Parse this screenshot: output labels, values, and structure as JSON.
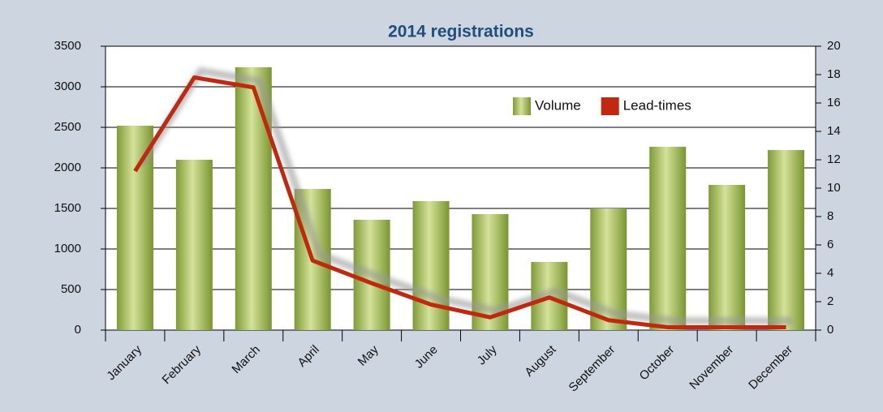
{
  "chart_data": {
    "type": "bar",
    "title": "2014 registrations",
    "categories": [
      "January",
      "February",
      "March",
      "April",
      "May",
      "June",
      "July",
      "August",
      "September",
      "October",
      "November",
      "December"
    ],
    "series": [
      {
        "name": "Volume",
        "color": "#9aaf4a",
        "values": [
          2520,
          2100,
          3240,
          1740,
          1360,
          1590,
          1430,
          840,
          1500,
          2260,
          1790,
          2220
        ]
      },
      {
        "name": "Lead-times",
        "color": "#c0280f",
        "axis": "y2",
        "values": [
          11.2,
          17.8,
          17.1,
          4.9,
          3.3,
          1.8,
          0.9,
          2.3,
          0.7,
          0.2,
          0.2,
          0.2
        ]
      }
    ],
    "ylim": [
      0,
      3500
    ],
    "yticks": [
      0,
      500,
      1000,
      1500,
      2000,
      2500,
      3000,
      3500
    ],
    "y2lim": [
      0,
      20
    ],
    "y2ticks": [
      0,
      2,
      4,
      6,
      8,
      10,
      12,
      14,
      16,
      18,
      20
    ],
    "grid": true
  }
}
